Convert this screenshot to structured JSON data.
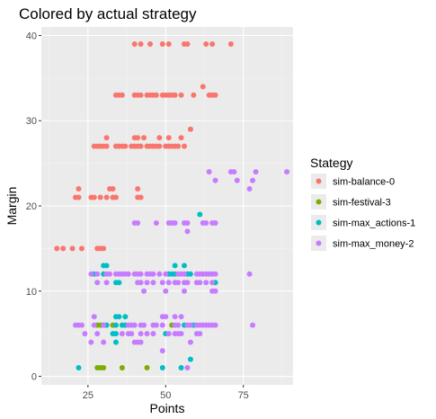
{
  "chart_data": {
    "type": "scatter",
    "title": "Colored by actual strategy",
    "xlabel": "Points",
    "ylabel": "Margin",
    "xlim": [
      10,
      91
    ],
    "ylim": [
      -1,
      41
    ],
    "x_ticks": [
      25,
      50,
      75
    ],
    "y_ticks": [
      0,
      10,
      20,
      30,
      40
    ],
    "grid": true,
    "legend": {
      "title": "Stategy",
      "position": "right"
    },
    "series": [
      {
        "name": "sim-balance-0",
        "color": "#F8766D",
        "points": [
          [
            40,
            39
          ],
          [
            42,
            39
          ],
          [
            45,
            39
          ],
          [
            49,
            39
          ],
          [
            51,
            39
          ],
          [
            56,
            39
          ],
          [
            57,
            39
          ],
          [
            63,
            39
          ],
          [
            65,
            39
          ],
          [
            71,
            39
          ],
          [
            62,
            34
          ],
          [
            34,
            33
          ],
          [
            35,
            33
          ],
          [
            36,
            33
          ],
          [
            40,
            33
          ],
          [
            41,
            33
          ],
          [
            42,
            33
          ],
          [
            44,
            33
          ],
          [
            45,
            33
          ],
          [
            46,
            33
          ],
          [
            47,
            33
          ],
          [
            49,
            33
          ],
          [
            50,
            33
          ],
          [
            51,
            33
          ],
          [
            52,
            33
          ],
          [
            53,
            33
          ],
          [
            55,
            33
          ],
          [
            59,
            33
          ],
          [
            64,
            33
          ],
          [
            65,
            33
          ],
          [
            66,
            33
          ],
          [
            58,
            29
          ],
          [
            31,
            28
          ],
          [
            40,
            28
          ],
          [
            41,
            28
          ],
          [
            43,
            28
          ],
          [
            48,
            28
          ],
          [
            51,
            28
          ],
          [
            55,
            28
          ],
          [
            27,
            27
          ],
          [
            28,
            27
          ],
          [
            29,
            27
          ],
          [
            30,
            27
          ],
          [
            31,
            27
          ],
          [
            34,
            27
          ],
          [
            35,
            27
          ],
          [
            36,
            27
          ],
          [
            37,
            27
          ],
          [
            39,
            27
          ],
          [
            40,
            27
          ],
          [
            41,
            27
          ],
          [
            42,
            27
          ],
          [
            44,
            27
          ],
          [
            45,
            27
          ],
          [
            46,
            27
          ],
          [
            47,
            27
          ],
          [
            48,
            27
          ],
          [
            50,
            27
          ],
          [
            51,
            27
          ],
          [
            52,
            27
          ],
          [
            53,
            27
          ],
          [
            54,
            27
          ],
          [
            56,
            27
          ],
          [
            22,
            22
          ],
          [
            32,
            22
          ],
          [
            33,
            22
          ],
          [
            41,
            22
          ],
          [
            21,
            21
          ],
          [
            22,
            21
          ],
          [
            26,
            21
          ],
          [
            27,
            21
          ],
          [
            29,
            21
          ],
          [
            31,
            21
          ],
          [
            33,
            21
          ],
          [
            34,
            21
          ],
          [
            41,
            21
          ],
          [
            42,
            21
          ],
          [
            15,
            15
          ],
          [
            17,
            15
          ],
          [
            20,
            15
          ],
          [
            23,
            15
          ],
          [
            28,
            15
          ],
          [
            29,
            15
          ],
          [
            30,
            15
          ]
        ]
      },
      {
        "name": "sim-festival-3",
        "color": "#7CAE00",
        "points": [
          [
            28,
            6
          ],
          [
            29,
            6
          ],
          [
            30,
            6
          ],
          [
            33,
            6
          ],
          [
            52,
            6
          ],
          [
            28,
            1
          ],
          [
            29,
            1
          ],
          [
            30,
            1
          ],
          [
            36,
            1
          ],
          [
            44,
            1
          ]
        ]
      },
      {
        "name": "sim-max_actions-1",
        "color": "#00BFC4",
        "points": [
          [
            61,
            19
          ],
          [
            30,
            13
          ],
          [
            31,
            13
          ],
          [
            53,
            13
          ],
          [
            56,
            13
          ],
          [
            27,
            12
          ],
          [
            30,
            12
          ],
          [
            51,
            12
          ],
          [
            52,
            12
          ],
          [
            53,
            12
          ],
          [
            57,
            12
          ],
          [
            58,
            12
          ],
          [
            34,
            11
          ],
          [
            35,
            11
          ],
          [
            66,
            11
          ],
          [
            34,
            7
          ],
          [
            35,
            7
          ],
          [
            37,
            7
          ],
          [
            31,
            6
          ],
          [
            34,
            6
          ],
          [
            36,
            6
          ],
          [
            37,
            6
          ],
          [
            56,
            6
          ],
          [
            59,
            6
          ],
          [
            33,
            5
          ],
          [
            34,
            5
          ],
          [
            50,
            5
          ],
          [
            34,
            4
          ],
          [
            58,
            2
          ],
          [
            22,
            1
          ],
          [
            49,
            1
          ],
          [
            55,
            1
          ]
        ]
      },
      {
        "name": "sim-max_money-2",
        "color": "#C77CFF",
        "points": [
          [
            64,
            24
          ],
          [
            71,
            24
          ],
          [
            72,
            24
          ],
          [
            79,
            24
          ],
          [
            89,
            24
          ],
          [
            66,
            23
          ],
          [
            73,
            23
          ],
          [
            78,
            23
          ],
          [
            77,
            22
          ],
          [
            40,
            18
          ],
          [
            41,
            18
          ],
          [
            47,
            18
          ],
          [
            51,
            18
          ],
          [
            52,
            18
          ],
          [
            53,
            18
          ],
          [
            56,
            18
          ],
          [
            57,
            18
          ],
          [
            62,
            18
          ],
          [
            63,
            18
          ],
          [
            65,
            18
          ],
          [
            66,
            18
          ],
          [
            57,
            17
          ],
          [
            26,
            12
          ],
          [
            28,
            12
          ],
          [
            31,
            12
          ],
          [
            32,
            12
          ],
          [
            34,
            12
          ],
          [
            35,
            12
          ],
          [
            36,
            12
          ],
          [
            37,
            12
          ],
          [
            38,
            12
          ],
          [
            40,
            12
          ],
          [
            41,
            12
          ],
          [
            42,
            12
          ],
          [
            44,
            12
          ],
          [
            45,
            12
          ],
          [
            46,
            12
          ],
          [
            48,
            12
          ],
          [
            50,
            12
          ],
          [
            54,
            12
          ],
          [
            55,
            12
          ],
          [
            56,
            12
          ],
          [
            60,
            12
          ],
          [
            61,
            12
          ],
          [
            62,
            12
          ],
          [
            63,
            12
          ],
          [
            64,
            12
          ],
          [
            65,
            12
          ],
          [
            66,
            12
          ],
          [
            77,
            12
          ],
          [
            28,
            11
          ],
          [
            31,
            11
          ],
          [
            41,
            11
          ],
          [
            42,
            11
          ],
          [
            44,
            11
          ],
          [
            46,
            11
          ],
          [
            49,
            11
          ],
          [
            51,
            11
          ],
          [
            53,
            11
          ],
          [
            54,
            11
          ],
          [
            56,
            11
          ],
          [
            57,
            11
          ],
          [
            60,
            11
          ],
          [
            61,
            11
          ],
          [
            63,
            11
          ],
          [
            65,
            11
          ],
          [
            43,
            10
          ],
          [
            50,
            10
          ],
          [
            56,
            10
          ],
          [
            65,
            10
          ],
          [
            66,
            10
          ],
          [
            27,
            7
          ],
          [
            49,
            7
          ],
          [
            50,
            7
          ],
          [
            53,
            7
          ],
          [
            55,
            7
          ],
          [
            21,
            6
          ],
          [
            22,
            6
          ],
          [
            23,
            6
          ],
          [
            27,
            6
          ],
          [
            30,
            6
          ],
          [
            38,
            6
          ],
          [
            39,
            6
          ],
          [
            40,
            6
          ],
          [
            42,
            6
          ],
          [
            43,
            6
          ],
          [
            46,
            6
          ],
          [
            47,
            6
          ],
          [
            49,
            6
          ],
          [
            53,
            6
          ],
          [
            54,
            6
          ],
          [
            57,
            6
          ],
          [
            58,
            6
          ],
          [
            60,
            6
          ],
          [
            61,
            6
          ],
          [
            62,
            6
          ],
          [
            63,
            6
          ],
          [
            64,
            6
          ],
          [
            65,
            6
          ],
          [
            66,
            6
          ],
          [
            78,
            6
          ],
          [
            24,
            5
          ],
          [
            28,
            5
          ],
          [
            36,
            5
          ],
          [
            38,
            5
          ],
          [
            39,
            5
          ],
          [
            42,
            5
          ],
          [
            44,
            5
          ],
          [
            46,
            5
          ],
          [
            51,
            5
          ],
          [
            53,
            5
          ],
          [
            54,
            5
          ],
          [
            55,
            5
          ],
          [
            60,
            5
          ],
          [
            61,
            5
          ],
          [
            26,
            4
          ],
          [
            30,
            4
          ],
          [
            40,
            4
          ],
          [
            41,
            4
          ],
          [
            42,
            4
          ],
          [
            58,
            4
          ],
          [
            49,
            3
          ],
          [
            57,
            1
          ]
        ]
      }
    ]
  }
}
